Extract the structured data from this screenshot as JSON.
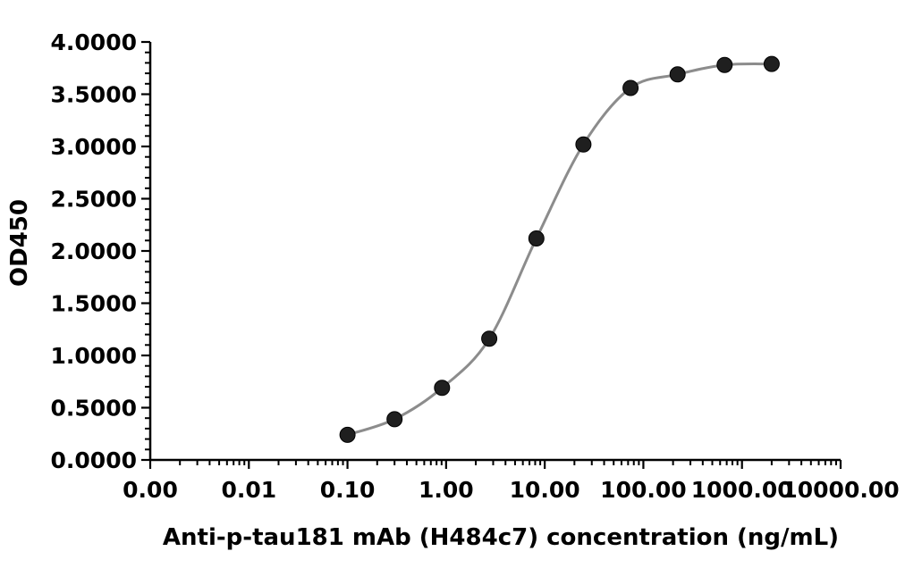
{
  "figure": {
    "background": "#ffffff"
  },
  "chart_data": {
    "type": "line",
    "title": "",
    "xlabel": "Anti-p-tau181 mAb (H484c7) concentration (ng/mL)",
    "ylabel": "OD450",
    "x_scale": "log10",
    "xlim": [
      0.001,
      10000
    ],
    "ylim": [
      0,
      4
    ],
    "grid": false,
    "legend": "none",
    "x": [
      0.1,
      0.3,
      0.91,
      2.74,
      8.23,
      24.69,
      74.07,
      222.22,
      666.67,
      2000
    ],
    "y": [
      0.24,
      0.39,
      0.69,
      1.16,
      2.12,
      3.02,
      3.56,
      3.69,
      3.78,
      3.79
    ],
    "x_ticks": [
      {
        "v": 0.001,
        "label": "0.00"
      },
      {
        "v": 0.01,
        "label": "0.01"
      },
      {
        "v": 0.1,
        "label": "0.10"
      },
      {
        "v": 1,
        "label": "1.00"
      },
      {
        "v": 10,
        "label": "10.00"
      },
      {
        "v": 100,
        "label": "100.00"
      },
      {
        "v": 1000,
        "label": "1000.00"
      },
      {
        "v": 10000,
        "label": "10000.00"
      }
    ],
    "x_minor_ticks": "log-decades-2-to-9",
    "y_ticks": [
      {
        "v": 0.0,
        "label": "0.0000"
      },
      {
        "v": 0.5,
        "label": "0.5000"
      },
      {
        "v": 1.0,
        "label": "1.0000"
      },
      {
        "v": 1.5,
        "label": "1.5000"
      },
      {
        "v": 2.0,
        "label": "2.0000"
      },
      {
        "v": 2.5,
        "label": "2.5000"
      },
      {
        "v": 3.0,
        "label": "3.0000"
      },
      {
        "v": 3.5,
        "label": "3.5000"
      },
      {
        "v": 4.0,
        "label": "4.0000"
      }
    ],
    "y_minor_step": 0.1,
    "colors": {
      "line": "#8c8c8c",
      "marker": "#1f1f1f",
      "axis": "#000000",
      "text": "#000000"
    },
    "marker_radius": 8.5,
    "line_width": 3
  }
}
